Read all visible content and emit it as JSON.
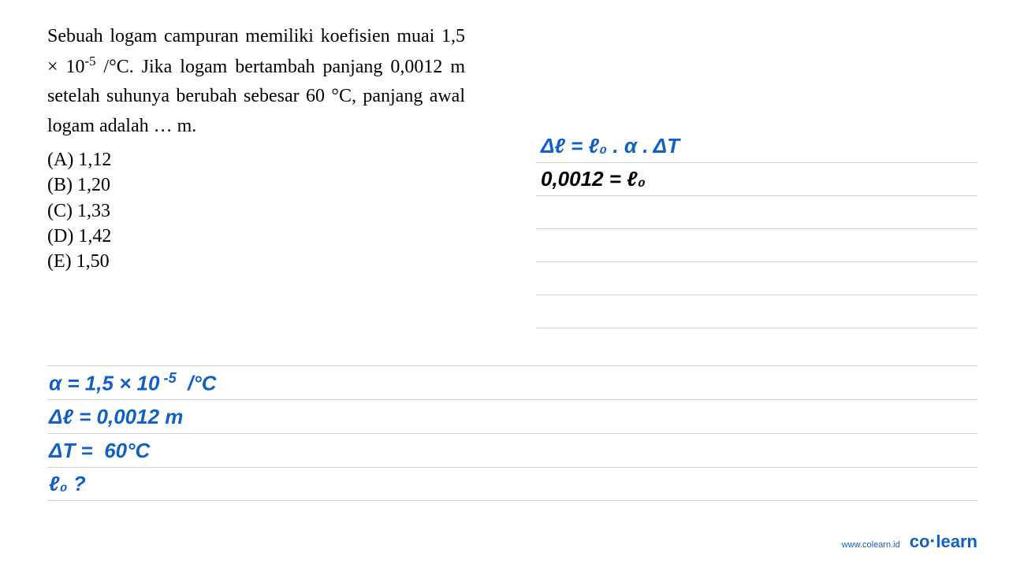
{
  "question": {
    "text_html": "Sebuah logam campuran memiliki koefisien muai 1,5 × 10<sup>-5</sup> /°C. Jika logam bertambah panjang 0,0012 m setelah suhunya berubah sebesar 60 °C, panjang awal logam adalah … m.",
    "options": [
      "(A)  1,12",
      "(B)  1,20",
      "(C)  1,33",
      "(D)  1,42",
      "(E)  1,50"
    ]
  },
  "handwriting_right": {
    "lines": [
      {
        "text": "Δℓ = ℓ₀ . α . ΔT",
        "color": "#1260c4"
      },
      {
        "text": "0,0012  =  ℓ₀",
        "color": "#000000"
      },
      {
        "text": "",
        "color": "#000000"
      },
      {
        "text": "",
        "color": "#000000"
      },
      {
        "text": "",
        "color": "#000000"
      },
      {
        "text": "",
        "color": "#000000"
      }
    ]
  },
  "handwriting_bottom": {
    "lines": [
      {
        "text_html": "α = 1,5 × 10<sup>&nbsp;-5</sup> &nbsp;/°C",
        "color": "#1260c4"
      },
      {
        "text_html": "Δℓ = 0,0012 m",
        "color": "#1260c4"
      },
      {
        "text_html": "ΔT = &nbsp;60°C",
        "color": "#1260c4"
      },
      {
        "text_html": "ℓ₀ ?",
        "color": "#1260c4"
      }
    ]
  },
  "footer": {
    "url": "www.colearn.id",
    "logo_co": "co",
    "logo_dot": "·",
    "logo_learn": "learn"
  },
  "colors": {
    "text": "#000000",
    "handwriting_blue": "#1260c4",
    "rule_line": "#d0d0d0",
    "background": "#ffffff"
  },
  "typography": {
    "question_fontsize": 24,
    "handwriting_fontsize": 26,
    "footer_url_fontsize": 11,
    "footer_logo_fontsize": 22
  }
}
